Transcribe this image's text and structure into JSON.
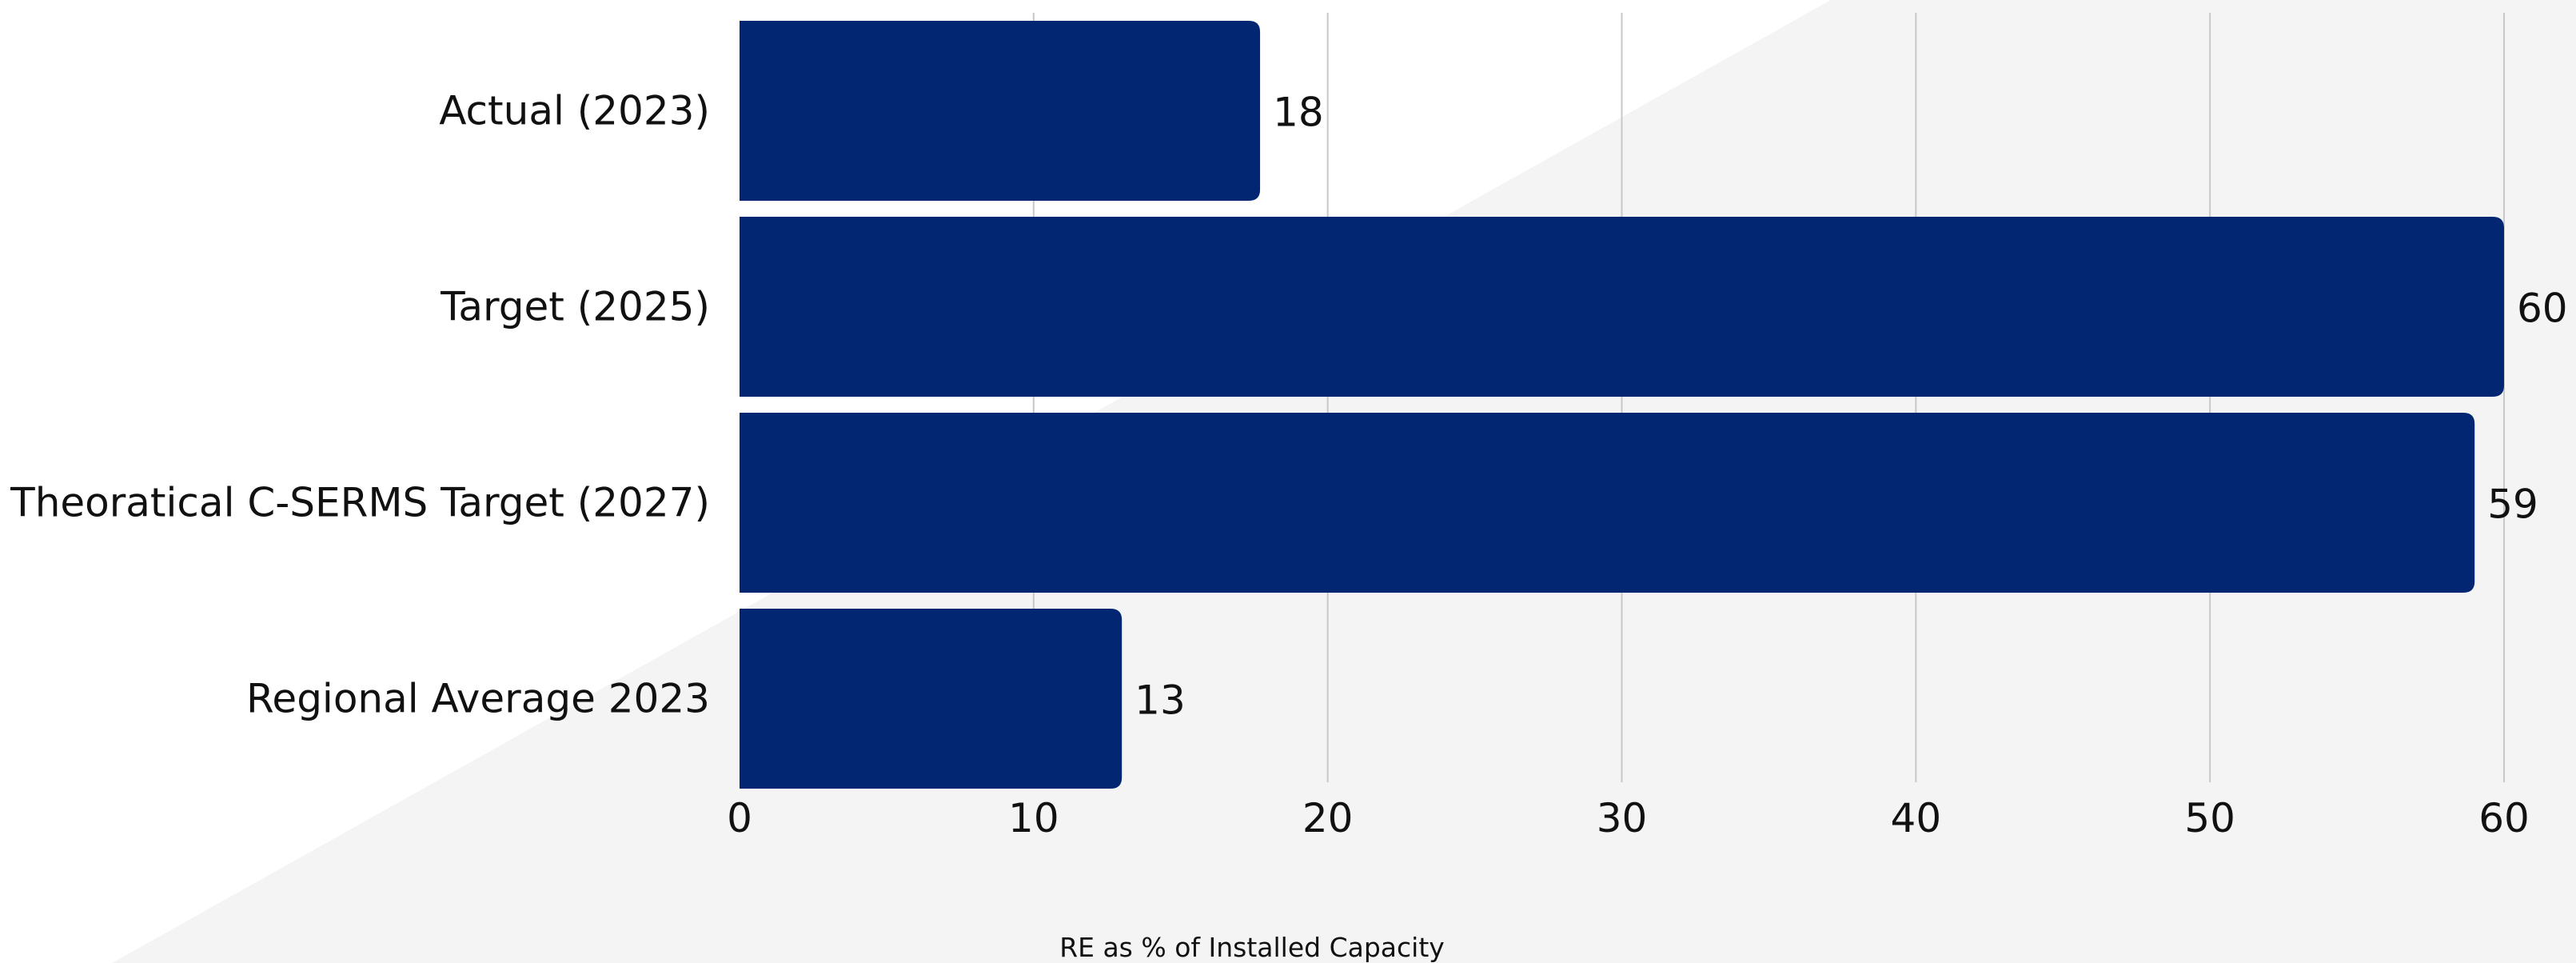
{
  "chart_data": {
    "type": "bar",
    "orientation": "horizontal",
    "categories": [
      "Actual (2023)",
      "Target (2025)",
      "Theoratical C-SERMS Target (2027)",
      "Regional Average 2023"
    ],
    "values": [
      17.7,
      60,
      59,
      13
    ],
    "data_labels": [
      "18",
      "60",
      "59",
      "13"
    ],
    "xlabel": "RE as % of Installed Capacity",
    "ylabel": "",
    "title": "",
    "xlim": [
      0,
      60
    ],
    "x_ticks": [
      0,
      10,
      20,
      30,
      40,
      50,
      60
    ],
    "x_tick_labels": [
      "0",
      "10",
      "20",
      "30",
      "40",
      "50",
      "60"
    ],
    "grid": "vertical",
    "legend": "none",
    "colors": {
      "bar": "#022672",
      "grid": "#c8c8c8",
      "background_light": "#ffffff",
      "background_shade": "#f4f4f4",
      "text": "#111111"
    }
  }
}
